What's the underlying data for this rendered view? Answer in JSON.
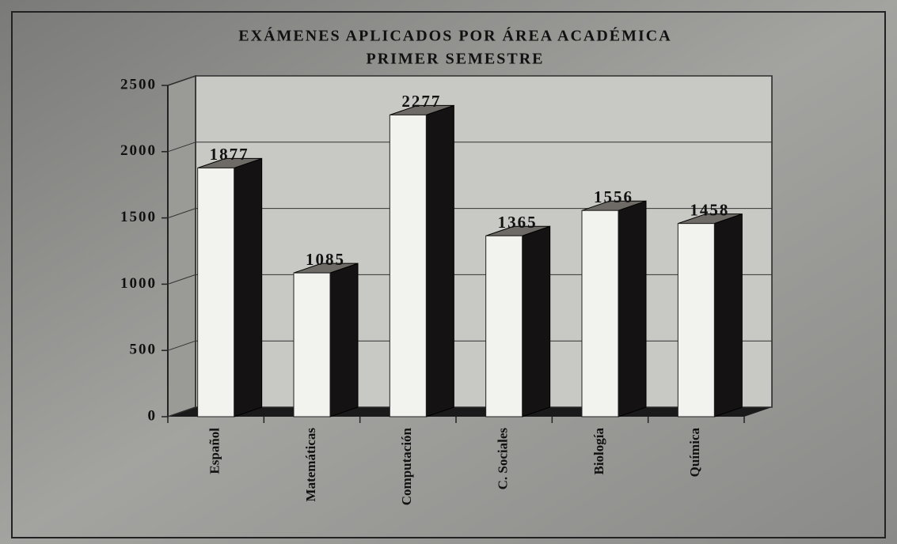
{
  "chart_data": {
    "type": "bar",
    "title": "EXÁMENES APLICADOS POR ÁREA ACADÉMICA",
    "subtitle": "PRIMER SEMESTRE",
    "categories": [
      "Español",
      "Matemáticas",
      "Computación",
      "C. Sociales",
      "Biología",
      "Química"
    ],
    "values": [
      1877,
      1085,
      2277,
      1365,
      1556,
      1458
    ],
    "color": "#f2f3ee",
    "ylim": [
      0,
      2500
    ],
    "yticks": [
      0,
      500,
      1000,
      1500,
      2000,
      2500
    ],
    "grid": true
  }
}
